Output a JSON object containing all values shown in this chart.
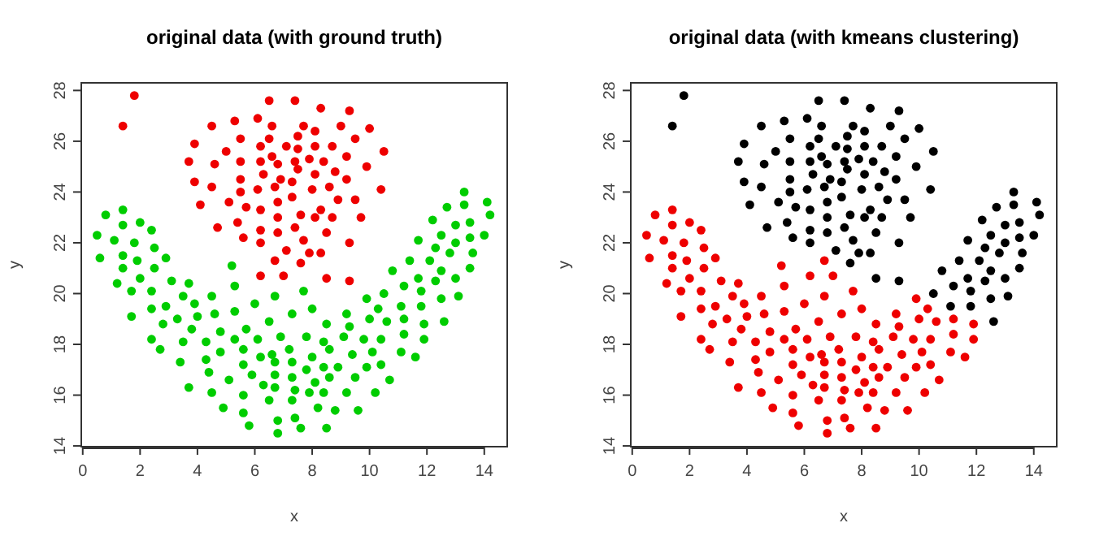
{
  "chart_data": [
    {
      "type": "scatter",
      "title": "original data (with ground truth)",
      "xlabel": "x",
      "ylabel": "y",
      "xlim": [
        -0.05,
        14.8
      ],
      "ylim": [
        13.97,
        28.3
      ],
      "xticks": [
        0,
        2,
        4,
        6,
        8,
        10,
        12,
        14
      ],
      "yticks": [
        14,
        16,
        18,
        20,
        22,
        24,
        26,
        28
      ],
      "marker": "circle",
      "series": [
        {
          "color": "#ee0000",
          "x": [
            1.8,
            1.4,
            3.7,
            3.9,
            3.9,
            4.1,
            4.5,
            4.6,
            4.5,
            4.7,
            5.0,
            5.1,
            5.3,
            5.4,
            5.5,
            5.5,
            5.5,
            5.5,
            5.7,
            5.6,
            6.1,
            6.2,
            6.2,
            6.1,
            6.2,
            6.2,
            6.2,
            6.3,
            6.5,
            6.5,
            6.6,
            6.6,
            6.7,
            6.8,
            6.8,
            6.8,
            6.8,
            6.9,
            7.1,
            7.1,
            7.3,
            7.3,
            7.4,
            7.4,
            7.5,
            7.5,
            7.4,
            7.5,
            7.6,
            7.7,
            7.7,
            7.9,
            7.9,
            8.0,
            8.1,
            8.1,
            8.1,
            8.1,
            8.3,
            8.3,
            8.3,
            8.4,
            8.5,
            8.6,
            8.7,
            8.8,
            8.9,
            8.7,
            9.0,
            9.2,
            9.2,
            9.3,
            9.3,
            9.5,
            9.5,
            9.7,
            9.9,
            10.0,
            10.4,
            10.5,
            6.2,
            6.7,
            7.0,
            7.6,
            8.5,
            9.3
          ],
          "values": [
            27.8,
            26.6,
            25.2,
            25.9,
            24.4,
            23.5,
            26.6,
            25.1,
            24.2,
            22.6,
            25.6,
            23.6,
            26.8,
            22.8,
            26.1,
            25.2,
            24.5,
            24.0,
            23.4,
            22.2,
            26.9,
            25.8,
            25.2,
            24.1,
            23.3,
            22.5,
            22.0,
            24.7,
            27.6,
            26.1,
            26.6,
            25.4,
            24.2,
            25.1,
            23.0,
            23.6,
            22.4,
            24.5,
            25.8,
            21.7,
            23.8,
            24.4,
            22.6,
            27.6,
            26.2,
            25.7,
            25.2,
            24.9,
            23.1,
            26.6,
            22.1,
            25.3,
            21.6,
            24.1,
            25.8,
            24.7,
            23.0,
            26.4,
            23.3,
            21.6,
            27.3,
            25.2,
            22.4,
            24.2,
            25.8,
            24.8,
            23.7,
            23.0,
            26.6,
            25.4,
            24.5,
            27.2,
            22.0,
            26.1,
            23.7,
            23.0,
            25.0,
            26.5,
            24.1,
            25.6,
            20.7,
            21.3,
            20.7,
            21.2,
            20.6,
            20.5
          ]
        },
        {
          "color": "#00cd00",
          "x": [
            0.5,
            0.6,
            0.8,
            1.1,
            1.4,
            1.4,
            1.4,
            1.4,
            1.8,
            1.9,
            2.0,
            2.4,
            2.5,
            2.5,
            2.9,
            5.2,
            10.8,
            11.4,
            11.7,
            12.1,
            12.2,
            12.3,
            12.5,
            12.5,
            12.7,
            12.8,
            13.0,
            13.0,
            13.3,
            13.3,
            13.5,
            13.5,
            13.6,
            13.5,
            14.1,
            14.2,
            14.0,
            10.5,
            11.1,
            11.2,
            11.7,
            11.8,
            11.8,
            12.3,
            12.5,
            12.6,
            13.0,
            13.1,
            1.2,
            1.7,
            1.7,
            2.0,
            2.4,
            2.4,
            2.4,
            2.7,
            2.8,
            2.9,
            3.1,
            3.3,
            3.4,
            3.5,
            3.5,
            3.7,
            3.8,
            3.7,
            3.9,
            4.0,
            4.3,
            4.3,
            4.4,
            4.5,
            4.5,
            4.6,
            4.8,
            4.8,
            4.9,
            5.1,
            5.3,
            5.3,
            5.3,
            5.6,
            5.6,
            5.6,
            5.6,
            5.7,
            5.8,
            5.9,
            6.0,
            6.1,
            6.2,
            6.3,
            6.5,
            6.5,
            6.6,
            6.7,
            6.7,
            6.7,
            6.7,
            6.8,
            6.8,
            6.9,
            7.2,
            7.3,
            7.3,
            7.3,
            7.3,
            7.4,
            7.4,
            7.6,
            7.7,
            7.8,
            7.8,
            7.9,
            8.0,
            8.0,
            8.1,
            8.2,
            8.4,
            8.4,
            8.4,
            8.5,
            8.5,
            8.6,
            8.6,
            8.8,
            8.9,
            9.1,
            9.2,
            9.2,
            9.3,
            9.4,
            9.5,
            9.6,
            9.8,
            9.9,
            9.9,
            10.0,
            10.1,
            10.2,
            10.3,
            10.4,
            10.4,
            10.6,
            10.7,
            11.1,
            11.2,
            11.2,
            11.6,
            11.9,
            11.9
          ],
          "values": [
            22.3,
            21.4,
            23.1,
            22.1,
            23.3,
            22.7,
            21.5,
            21.0,
            22.0,
            21.3,
            22.8,
            22.5,
            21.8,
            21.0,
            21.4,
            21.1,
            20.9,
            21.3,
            22.1,
            21.3,
            22.9,
            21.8,
            22.3,
            20.9,
            23.4,
            21.6,
            22.0,
            22.7,
            24.0,
            23.5,
            22.8,
            22.2,
            21.6,
            21.0,
            23.6,
            23.1,
            22.3,
            20.0,
            19.5,
            20.3,
            20.6,
            19.5,
            20.1,
            20.5,
            19.8,
            18.9,
            20.6,
            19.9,
            20.4,
            20.1,
            19.1,
            20.6,
            20.1,
            19.4,
            18.2,
            17.8,
            18.8,
            19.5,
            20.5,
            19.0,
            17.3,
            19.9,
            18.1,
            20.4,
            18.6,
            16.3,
            19.6,
            19.1,
            18.1,
            17.4,
            16.9,
            19.9,
            16.1,
            19.2,
            17.7,
            18.5,
            15.5,
            16.6,
            20.3,
            19.3,
            18.2,
            17.8,
            17.2,
            16.0,
            15.3,
            18.6,
            14.8,
            16.8,
            19.6,
            18.2,
            17.5,
            16.4,
            18.9,
            15.8,
            17.6,
            19.9,
            17.3,
            16.8,
            16.3,
            15.0,
            14.5,
            18.3,
            17.8,
            19.2,
            17.3,
            16.7,
            15.8,
            16.2,
            15.1,
            14.7,
            20.1,
            18.3,
            17.0,
            16.1,
            19.4,
            17.5,
            16.5,
            15.5,
            18.1,
            17.1,
            16.1,
            18.8,
            14.7,
            17.8,
            16.7,
            15.4,
            17.1,
            18.3,
            19.2,
            16.1,
            18.7,
            17.6,
            16.7,
            15.4,
            18.2,
            17.1,
            19.8,
            19.0,
            17.7,
            16.1,
            19.4,
            18.2,
            17.2,
            18.9,
            16.6,
            17.7,
            19.0,
            18.4,
            17.5,
            18.8,
            18.2
          ]
        }
      ]
    },
    {
      "type": "scatter",
      "title": "original data (with kmeans clustering)",
      "xlabel": "x",
      "ylabel": "y",
      "xlim": [
        -0.05,
        14.8
      ],
      "ylim": [
        13.97,
        28.3
      ],
      "xticks": [
        0,
        2,
        4,
        6,
        8,
        10,
        12,
        14
      ],
      "yticks": [
        14,
        16,
        18,
        20,
        22,
        24,
        26,
        28
      ],
      "marker": "circle",
      "series": [
        {
          "color": "#000000",
          "x": [
            1.8,
            1.4,
            3.7,
            3.9,
            3.9,
            4.1,
            4.5,
            4.6,
            4.5,
            4.7,
            5.0,
            5.1,
            5.3,
            5.4,
            5.5,
            5.5,
            5.5,
            5.5,
            5.7,
            5.6,
            6.1,
            6.2,
            6.2,
            6.1,
            6.2,
            6.2,
            6.2,
            6.3,
            6.5,
            6.5,
            6.6,
            6.6,
            6.7,
            6.8,
            6.8,
            6.8,
            6.8,
            6.9,
            7.1,
            7.1,
            7.3,
            7.3,
            7.4,
            7.4,
            7.5,
            7.5,
            7.4,
            7.5,
            7.6,
            7.7,
            7.7,
            7.9,
            7.9,
            8.0,
            8.1,
            8.1,
            8.1,
            8.1,
            8.3,
            8.3,
            8.3,
            8.4,
            8.5,
            8.6,
            8.7,
            8.8,
            8.9,
            8.7,
            9.0,
            9.2,
            9.2,
            9.3,
            9.3,
            9.5,
            9.5,
            9.7,
            9.9,
            10.0,
            10.4,
            10.5,
            7.6,
            8.5,
            9.3,
            10.8,
            11.4,
            11.7,
            12.1,
            12.2,
            12.3,
            12.5,
            12.5,
            12.7,
            12.8,
            13.0,
            13.0,
            13.3,
            13.3,
            13.5,
            13.5,
            13.6,
            13.5,
            14.1,
            14.2,
            14.0,
            10.5,
            11.1,
            11.2,
            11.7,
            11.8,
            11.8,
            12.3,
            12.5,
            12.6,
            13.0,
            13.1
          ],
          "values": [
            27.8,
            26.6,
            25.2,
            25.9,
            24.4,
            23.5,
            26.6,
            25.1,
            24.2,
            22.6,
            25.6,
            23.6,
            26.8,
            22.8,
            26.1,
            25.2,
            24.5,
            24.0,
            23.4,
            22.2,
            26.9,
            25.8,
            25.2,
            24.1,
            23.3,
            22.5,
            22.0,
            24.7,
            27.6,
            26.1,
            26.6,
            25.4,
            24.2,
            25.1,
            23.0,
            23.6,
            22.4,
            24.5,
            25.8,
            21.7,
            23.8,
            24.4,
            22.6,
            27.6,
            26.2,
            25.7,
            25.2,
            24.9,
            23.1,
            26.6,
            22.1,
            25.3,
            21.6,
            24.1,
            25.8,
            24.7,
            23.0,
            26.4,
            23.3,
            21.6,
            27.3,
            25.2,
            22.4,
            24.2,
            25.8,
            24.8,
            23.7,
            23.0,
            26.6,
            25.4,
            24.5,
            27.2,
            22.0,
            26.1,
            23.7,
            23.0,
            25.0,
            26.5,
            24.1,
            25.6,
            21.2,
            20.6,
            20.5,
            20.9,
            21.3,
            22.1,
            21.3,
            22.9,
            21.8,
            22.3,
            20.9,
            23.4,
            21.6,
            22.0,
            22.7,
            24.0,
            23.5,
            22.8,
            22.2,
            21.6,
            21.0,
            23.6,
            23.1,
            22.3,
            20.0,
            19.5,
            20.3,
            20.6,
            19.5,
            20.1,
            20.5,
            19.8,
            18.9,
            20.6,
            19.9
          ]
        },
        {
          "color": "#ee0000",
          "x": [
            6.2,
            6.7,
            7.0,
            0.5,
            0.6,
            0.8,
            1.1,
            1.4,
            1.4,
            1.4,
            1.4,
            1.8,
            1.9,
            2.0,
            2.4,
            2.5,
            2.5,
            2.9,
            5.2,
            1.2,
            1.7,
            1.7,
            2.0,
            2.4,
            2.4,
            2.4,
            2.7,
            2.8,
            2.9,
            3.1,
            3.3,
            3.4,
            3.5,
            3.5,
            3.7,
            3.8,
            3.7,
            3.9,
            4.0,
            4.3,
            4.3,
            4.4,
            4.5,
            4.5,
            4.6,
            4.8,
            4.8,
            4.9,
            5.1,
            5.3,
            5.3,
            5.3,
            5.6,
            5.6,
            5.6,
            5.6,
            5.7,
            5.8,
            5.9,
            6.0,
            6.1,
            6.2,
            6.3,
            6.5,
            6.5,
            6.6,
            6.7,
            6.7,
            6.7,
            6.7,
            6.8,
            6.8,
            6.9,
            7.2,
            7.3,
            7.3,
            7.3,
            7.3,
            7.4,
            7.4,
            7.6,
            7.7,
            7.8,
            7.8,
            7.9,
            8.0,
            8.0,
            8.1,
            8.2,
            8.4,
            8.4,
            8.4,
            8.5,
            8.5,
            8.6,
            8.6,
            8.8,
            8.9,
            9.1,
            9.2,
            9.2,
            9.3,
            9.4,
            9.5,
            9.6,
            9.8,
            9.9,
            9.9,
            10.0,
            10.1,
            10.2,
            10.3,
            10.4,
            10.4,
            10.6,
            10.7,
            11.1,
            11.2,
            11.2,
            11.6,
            11.9,
            11.9
          ],
          "values": [
            20.7,
            21.3,
            20.7,
            22.3,
            21.4,
            23.1,
            22.1,
            23.3,
            22.7,
            21.5,
            21.0,
            22.0,
            21.3,
            22.8,
            22.5,
            21.8,
            21.0,
            21.4,
            21.1,
            20.4,
            20.1,
            19.1,
            20.6,
            20.1,
            19.4,
            18.2,
            17.8,
            18.8,
            19.5,
            20.5,
            19.0,
            17.3,
            19.9,
            18.1,
            20.4,
            18.6,
            16.3,
            19.6,
            19.1,
            18.1,
            17.4,
            16.9,
            19.9,
            16.1,
            19.2,
            17.7,
            18.5,
            15.5,
            16.6,
            20.3,
            19.3,
            18.2,
            17.8,
            17.2,
            16.0,
            15.3,
            18.6,
            14.8,
            16.8,
            19.6,
            18.2,
            17.5,
            16.4,
            18.9,
            15.8,
            17.6,
            19.9,
            17.3,
            16.8,
            16.3,
            15.0,
            14.5,
            18.3,
            17.8,
            19.2,
            17.3,
            16.7,
            15.8,
            16.2,
            15.1,
            14.7,
            20.1,
            18.3,
            17.0,
            16.1,
            19.4,
            17.5,
            16.5,
            15.5,
            18.1,
            17.1,
            16.1,
            18.8,
            14.7,
            17.8,
            16.7,
            15.4,
            17.1,
            18.3,
            19.2,
            16.1,
            18.7,
            17.6,
            16.7,
            15.4,
            18.2,
            17.1,
            19.8,
            19.0,
            17.7,
            16.1,
            19.4,
            18.2,
            17.2,
            18.9,
            16.6,
            17.7,
            19.0,
            18.4,
            17.5,
            18.8,
            18.2
          ]
        }
      ]
    }
  ]
}
